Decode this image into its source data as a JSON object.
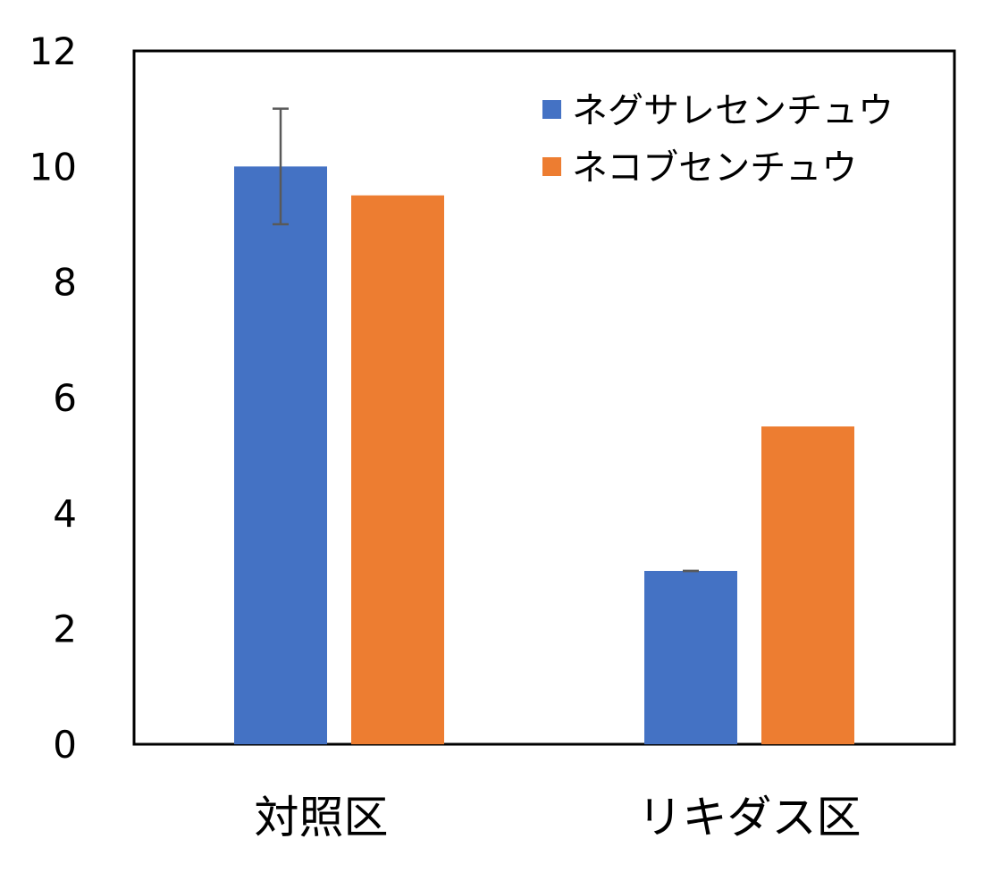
{
  "chart_data": {
    "type": "bar",
    "categories": [
      "対照区",
      "リキダス区"
    ],
    "series": [
      {
        "name": "ネグサレセンチュウ",
        "values": [
          10,
          3
        ],
        "error": [
          1,
          0
        ],
        "color": "#4472C4"
      },
      {
        "name": "ネコブセンチュウ",
        "values": [
          9.5,
          5.5
        ],
        "error": [
          null,
          null
        ],
        "color": "#ED7D31"
      }
    ],
    "ylim": [
      0,
      12
    ],
    "yticks": [
      "0",
      "2",
      "4",
      "6",
      "8",
      "10",
      "12"
    ],
    "ytick_values": [
      0,
      2,
      4,
      6,
      8,
      10,
      12
    ],
    "title": "",
    "xlabel": "",
    "ylabel": "",
    "grid": false,
    "legend_position": "top-right",
    "error_bar_color": "#595959",
    "axis_color": "#000000"
  }
}
